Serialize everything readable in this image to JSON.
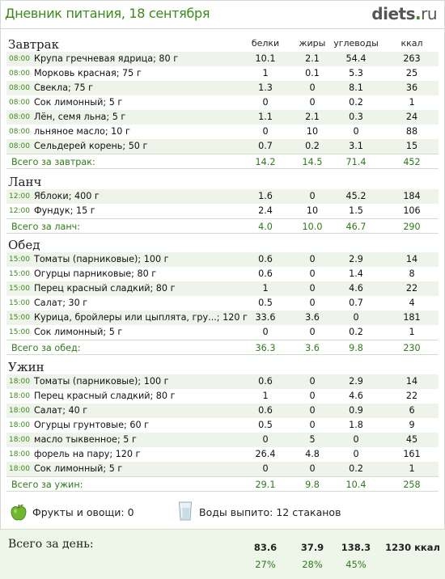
{
  "header": {
    "title": "Дневник питания, 18 сентября",
    "logo_main": "diets",
    "logo_dot": ".",
    "logo_tld": "ru"
  },
  "columns": [
    "белки",
    "жиры",
    "углеводы",
    "ккал"
  ],
  "meals": [
    {
      "title": "Завтрак",
      "items": [
        {
          "time": "08:00",
          "name": "Крупа гречневая ядрица; 80 г",
          "protein": "10.1",
          "fat": "2.1",
          "carbs": "54.4",
          "kcal": "263"
        },
        {
          "time": "08:00",
          "name": "Морковь красная; 75 г",
          "protein": "1",
          "fat": "0.1",
          "carbs": "5.3",
          "kcal": "25"
        },
        {
          "time": "08:00",
          "name": "Свекла; 75 г",
          "protein": "1.3",
          "fat": "0",
          "carbs": "8.1",
          "kcal": "36"
        },
        {
          "time": "08:00",
          "name": "Сок лимонный; 5 г",
          "protein": "0",
          "fat": "0",
          "carbs": "0.2",
          "kcal": "1"
        },
        {
          "time": "08:00",
          "name": "Лён, семя льна; 5 г",
          "protein": "1.1",
          "fat": "2.1",
          "carbs": "0.3",
          "kcal": "24"
        },
        {
          "time": "08:00",
          "name": "льняное масло; 10 г",
          "protein": "0",
          "fat": "10",
          "carbs": "0",
          "kcal": "88"
        },
        {
          "time": "08:00",
          "name": "Сельдерей корень; 50 г",
          "protein": "0.7",
          "fat": "0.2",
          "carbs": "3.1",
          "kcal": "15"
        }
      ],
      "total": {
        "label": "Всего за завтрак:",
        "protein": "14.2",
        "fat": "14.5",
        "carbs": "71.4",
        "kcal": "452"
      }
    },
    {
      "title": "Ланч",
      "items": [
        {
          "time": "12:00",
          "name": "Яблоки; 400 г",
          "protein": "1.6",
          "fat": "0",
          "carbs": "45.2",
          "kcal": "184"
        },
        {
          "time": "12:00",
          "name": "Фундук; 15 г",
          "protein": "2.4",
          "fat": "10",
          "carbs": "1.5",
          "kcal": "106"
        }
      ],
      "total": {
        "label": "Всего за ланч:",
        "protein": "4.0",
        "fat": "10.0",
        "carbs": "46.7",
        "kcal": "290"
      }
    },
    {
      "title": "Обед",
      "items": [
        {
          "time": "15:00",
          "name": "Томаты (парниковые); 100 г",
          "protein": "0.6",
          "fat": "0",
          "carbs": "2.9",
          "kcal": "14"
        },
        {
          "time": "15:00",
          "name": "Огурцы парниковые; 80 г",
          "protein": "0.6",
          "fat": "0",
          "carbs": "1.4",
          "kcal": "8"
        },
        {
          "time": "15:00",
          "name": "Перец красный сладкий; 80 г",
          "protein": "1",
          "fat": "0",
          "carbs": "4.6",
          "kcal": "22"
        },
        {
          "time": "15:00",
          "name": "Салат; 30 г",
          "protein": "0.5",
          "fat": "0",
          "carbs": "0.7",
          "kcal": "4"
        },
        {
          "time": "15:00",
          "name": "Курица, бройлеры или цыплята, гру...; 120 г",
          "protein": "33.6",
          "fat": "3.6",
          "carbs": "0",
          "kcal": "181"
        },
        {
          "time": "15:00",
          "name": "Сок лимонный; 5 г",
          "protein": "0",
          "fat": "0",
          "carbs": "0.2",
          "kcal": "1"
        }
      ],
      "total": {
        "label": "Всего за обед:",
        "protein": "36.3",
        "fat": "3.6",
        "carbs": "9.8",
        "kcal": "230"
      }
    },
    {
      "title": "Ужин",
      "items": [
        {
          "time": "18:00",
          "name": "Томаты (парниковые); 100 г",
          "protein": "0.6",
          "fat": "0",
          "carbs": "2.9",
          "kcal": "14"
        },
        {
          "time": "18:00",
          "name": "Перец красный сладкий; 80 г",
          "protein": "1",
          "fat": "0",
          "carbs": "4.6",
          "kcal": "22"
        },
        {
          "time": "18:00",
          "name": "Салат; 40 г",
          "protein": "0.6",
          "fat": "0",
          "carbs": "0.9",
          "kcal": "6"
        },
        {
          "time": "18:00",
          "name": "Огурцы грунтовые; 60 г",
          "protein": "0.5",
          "fat": "0",
          "carbs": "1.8",
          "kcal": "9"
        },
        {
          "time": "18:00",
          "name": "масло тыквенное; 5 г",
          "protein": "0",
          "fat": "5",
          "carbs": "0",
          "kcal": "45"
        },
        {
          "time": "18:00",
          "name": "форель на пару; 120 г",
          "protein": "26.4",
          "fat": "4.8",
          "carbs": "0",
          "kcal": "161"
        },
        {
          "time": "18:00",
          "name": "Сок лимонный; 5 г",
          "protein": "0",
          "fat": "0",
          "carbs": "0.2",
          "kcal": "1"
        }
      ],
      "total": {
        "label": "Всего за ужин:",
        "protein": "29.1",
        "fat": "9.8",
        "carbs": "10.4",
        "kcal": "258"
      }
    }
  ],
  "extras": {
    "fruits_label": "Фрукты и овощи: 0",
    "water_label": "Воды выпито: 12 стаканов",
    "fruits_icon": "apple-icon",
    "water_icon": "glass-icon"
  },
  "day_total": {
    "label": "Всего за день:",
    "protein": "83.6",
    "fat": "37.9",
    "carbs": "138.3",
    "kcal": "1230 ккал",
    "protein_pct": "27%",
    "fat_pct": "28%",
    "carbs_pct": "45%"
  },
  "colors": {
    "accent_green": "#3a8a1a",
    "row_stripe": "#eef4ea"
  }
}
